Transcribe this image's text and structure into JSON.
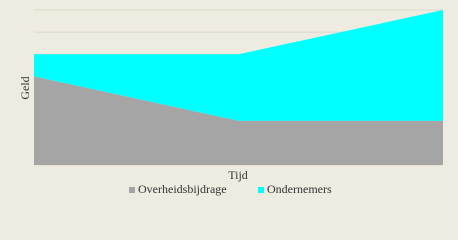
{
  "chart_data": {
    "type": "stacked-area",
    "y_label": "Geld",
    "x_label": "Tijd",
    "categories": [
      null,
      null,
      null
    ],
    "series": [
      {
        "name": "Overheidsbijdrage",
        "color": "#a5a5a5",
        "values": [
          4,
          2,
          2
        ]
      },
      {
        "name": "Ondernemers",
        "color": "#00ffff",
        "values": [
          1,
          3,
          5
        ]
      }
    ],
    "ylim": [
      0,
      7
    ],
    "yticks": [
      0,
      1,
      2,
      3,
      4,
      5,
      6,
      7
    ],
    "grid": true,
    "legend": "bottom"
  }
}
